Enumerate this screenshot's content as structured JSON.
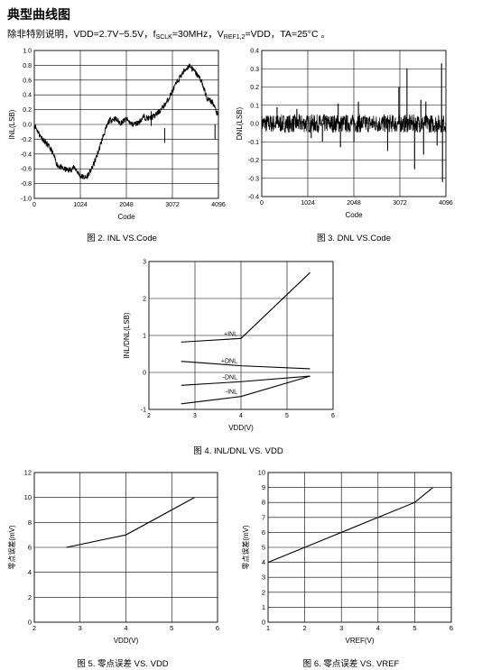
{
  "header": {
    "section_title": "典型曲线图",
    "conditions_prefix": "除非特别说明，VDD=2.7V~5.5V，f",
    "conditions_sclk_sub": "SCLK",
    "conditions_mid": "=30MHz，V",
    "conditions_ref_sub": "REF1,2",
    "conditions_suffix": "=VDD，TA=25°C 。"
  },
  "captions": {
    "fig2": "图 2. INL VS.Code",
    "fig3": "图 3. DNL VS.Code",
    "fig4": "图 4. INL/DNL VS. VDD",
    "fig5": "图 5. 零点误差 VS. VDD",
    "fig6": "图 6. 零点误差 VS. VREF"
  },
  "chart_data": [
    {
      "id": "fig2",
      "type": "line",
      "xlabel": "Code",
      "ylabel": "INL(LSB)",
      "xlim": [
        0,
        4096
      ],
      "ylim": [
        -1.0,
        1.0
      ],
      "xticks": [
        0,
        1024,
        2048,
        3072,
        4096
      ],
      "xtick_labels": [
        "0",
        "1024",
        "2048",
        "3072",
        "4096"
      ],
      "yticks": [
        -1.0,
        -0.8,
        -0.6,
        -0.4,
        -0.2,
        0.0,
        0.2,
        0.4,
        0.6,
        0.8,
        1.0
      ],
      "ytick_labels": [
        "-1.0",
        "-0.8",
        "-0.6",
        "-0.4",
        "-0.2",
        "0.0",
        "0.2",
        "0.4",
        "0.6",
        "0.8",
        "1.0"
      ],
      "grid": true,
      "series": [
        {
          "x": [
            0,
            128,
            256,
            384,
            512,
            640,
            768,
            896,
            1024,
            1152,
            1280,
            1408,
            1536,
            1664,
            1792,
            1920,
            2048,
            2176,
            2304,
            2432,
            2560,
            2688,
            2816,
            2944,
            3072,
            3200,
            3328,
            3456,
            3584,
            3712,
            3840,
            3968,
            4096
          ],
          "y": [
            0.0,
            -0.15,
            -0.25,
            -0.35,
            -0.55,
            -0.6,
            -0.62,
            -0.58,
            -0.7,
            -0.72,
            -0.6,
            -0.4,
            -0.15,
            0.05,
            0.08,
            0.02,
            0.07,
            0.0,
            0.02,
            0.1,
            0.08,
            0.12,
            0.2,
            0.3,
            0.45,
            0.6,
            0.72,
            0.8,
            0.7,
            0.6,
            0.35,
            0.3,
            0.1
          ]
        }
      ]
    },
    {
      "id": "fig3",
      "type": "line",
      "xlabel": "Code",
      "ylabel": "DNL(LSB)",
      "xlim": [
        0,
        4096
      ],
      "ylim": [
        -0.4,
        0.4
      ],
      "xticks": [
        0,
        1024,
        2048,
        3072,
        4096
      ],
      "xtick_labels": [
        "0",
        "1024",
        "2048",
        "3072",
        "4096"
      ],
      "yticks": [
        -0.4,
        -0.3,
        -0.2,
        -0.1,
        0.0,
        0.1,
        0.2,
        0.3,
        0.4
      ],
      "ytick_labels": [
        "-0.4",
        "-0.3",
        "-0.2",
        "-0.1",
        "0.0",
        "0.1",
        "0.2",
        "0.3",
        "0.4"
      ],
      "grid": true,
      "noise_band": 0.05,
      "spikes": [
        {
          "x": 340,
          "y": 0.09
        },
        {
          "x": 780,
          "y": 0.08
        },
        {
          "x": 1100,
          "y": -0.08
        },
        {
          "x": 1350,
          "y": -0.1
        },
        {
          "x": 1700,
          "y": 0.11
        },
        {
          "x": 1750,
          "y": -0.13
        },
        {
          "x": 2050,
          "y": -0.1
        },
        {
          "x": 2150,
          "y": 0.12
        },
        {
          "x": 2800,
          "y": -0.15
        },
        {
          "x": 3050,
          "y": 0.2
        },
        {
          "x": 3230,
          "y": 0.3
        },
        {
          "x": 3400,
          "y": -0.25
        },
        {
          "x": 3540,
          "y": 0.13
        },
        {
          "x": 3600,
          "y": -0.17
        },
        {
          "x": 3650,
          "y": 0.12
        },
        {
          "x": 3900,
          "y": -0.12
        },
        {
          "x": 4000,
          "y": 0.33
        },
        {
          "x": 4020,
          "y": -0.32
        }
      ]
    },
    {
      "id": "fig4",
      "type": "line",
      "xlabel": "VDD(V)",
      "ylabel": "INL/DNL(LSB)",
      "xlim": [
        2,
        6
      ],
      "ylim": [
        -1,
        3
      ],
      "xticks": [
        2,
        3,
        4,
        5,
        6
      ],
      "xtick_labels": [
        "2",
        "3",
        "4",
        "5",
        "6"
      ],
      "yticks": [
        -1,
        0,
        1,
        2,
        3
      ],
      "ytick_labels": [
        "-1",
        "0",
        "1",
        "2",
        "3"
      ],
      "grid": true,
      "series": [
        {
          "name": "+INL",
          "x": [
            2.7,
            4.0,
            5.5
          ],
          "y": [
            0.82,
            0.92,
            2.7
          ]
        },
        {
          "name": "+DNL",
          "x": [
            2.7,
            4.0,
            5.5
          ],
          "y": [
            0.3,
            0.18,
            0.1
          ]
        },
        {
          "name": "-DNL",
          "x": [
            2.7,
            4.0,
            5.5
          ],
          "y": [
            -0.35,
            -0.25,
            -0.1
          ]
        },
        {
          "name": "-INL",
          "x": [
            2.7,
            4.0,
            5.5
          ],
          "y": [
            -0.85,
            -0.65,
            -0.1
          ]
        }
      ]
    },
    {
      "id": "fig5",
      "type": "line",
      "xlabel": "VDD(V)",
      "ylabel": "零点误差(mV)",
      "xlim": [
        2,
        6
      ],
      "ylim": [
        0,
        12
      ],
      "xticks": [
        2,
        3,
        4,
        5,
        6
      ],
      "xtick_labels": [
        "2",
        "3",
        "4",
        "5",
        "6"
      ],
      "yticks": [
        0,
        2,
        4,
        6,
        8,
        10,
        12
      ],
      "ytick_labels": [
        "0",
        "2",
        "4",
        "6",
        "8",
        "10",
        "12"
      ],
      "grid": true,
      "series": [
        {
          "x": [
            2.7,
            4.0,
            5.5
          ],
          "y": [
            6.0,
            7.0,
            10.0
          ]
        }
      ]
    },
    {
      "id": "fig6",
      "type": "line",
      "xlabel": "VREF(V)",
      "ylabel": "零点误差(mV)",
      "xlim": [
        1,
        6
      ],
      "ylim": [
        0,
        10
      ],
      "xticks": [
        1,
        2,
        3,
        4,
        5,
        6
      ],
      "xtick_labels": [
        "1",
        "2",
        "3",
        "4",
        "5",
        "6"
      ],
      "yticks": [
        0,
        1,
        2,
        3,
        4,
        5,
        6,
        7,
        8,
        9,
        10
      ],
      "ytick_labels": [
        "0",
        "1",
        "2",
        "3",
        "4",
        "5",
        "6",
        "7",
        "8",
        "9",
        "10"
      ],
      "grid": true,
      "series": [
        {
          "x": [
            1.0,
            2.0,
            3.0,
            4.0,
            5.0,
            5.5
          ],
          "y": [
            4.0,
            5.0,
            6.0,
            7.0,
            8.0,
            9.0
          ]
        }
      ]
    }
  ]
}
